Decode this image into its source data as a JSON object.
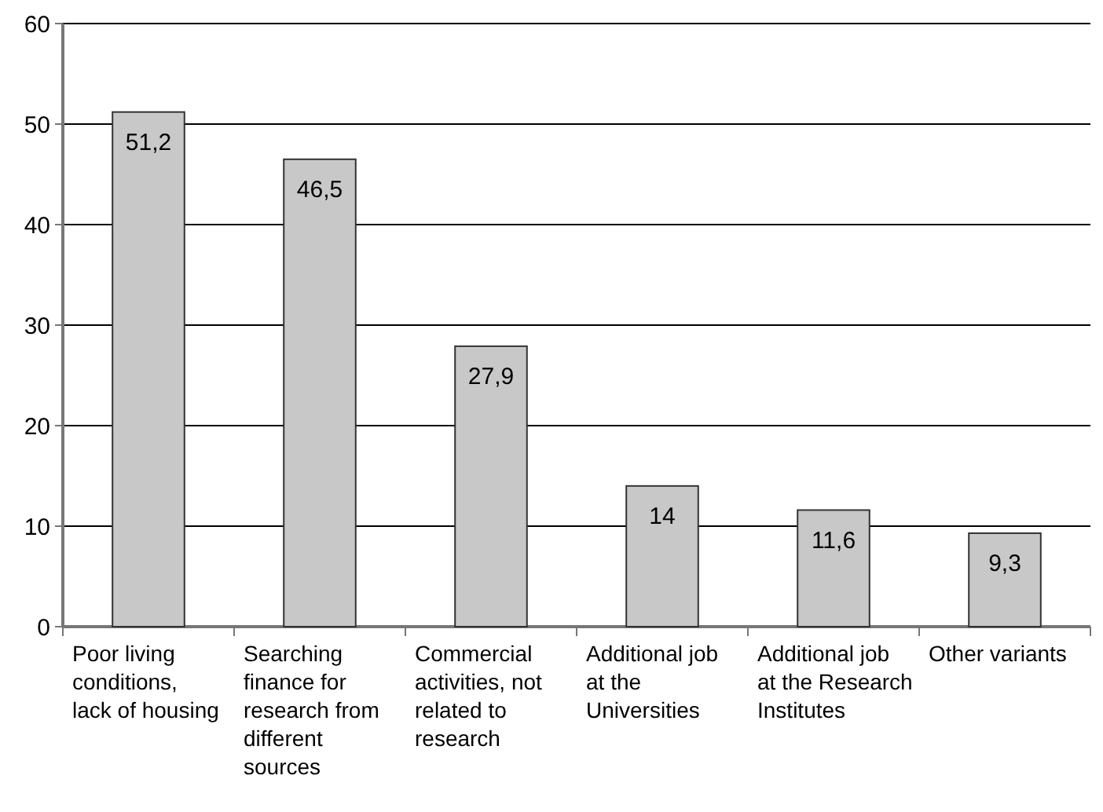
{
  "chart_data": {
    "type": "bar",
    "categories": [
      "Poor living conditions, lack of housing",
      "Searching finance for research from different sources",
      "Commercial activities, not related to research",
      "Additional job at the Universities",
      "Additional job at the Research Institutes",
      "Other variants"
    ],
    "values": [
      51.2,
      46.5,
      27.9,
      14,
      11.6,
      9.3
    ],
    "value_labels": [
      "51,2",
      "46,5",
      "27,9",
      "14",
      "11,6",
      "9,3"
    ],
    "color": "#c8c8c8",
    "ylim": [
      0,
      60
    ],
    "yticks": [
      0,
      10,
      20,
      30,
      40,
      50,
      60
    ],
    "grid": "y"
  }
}
